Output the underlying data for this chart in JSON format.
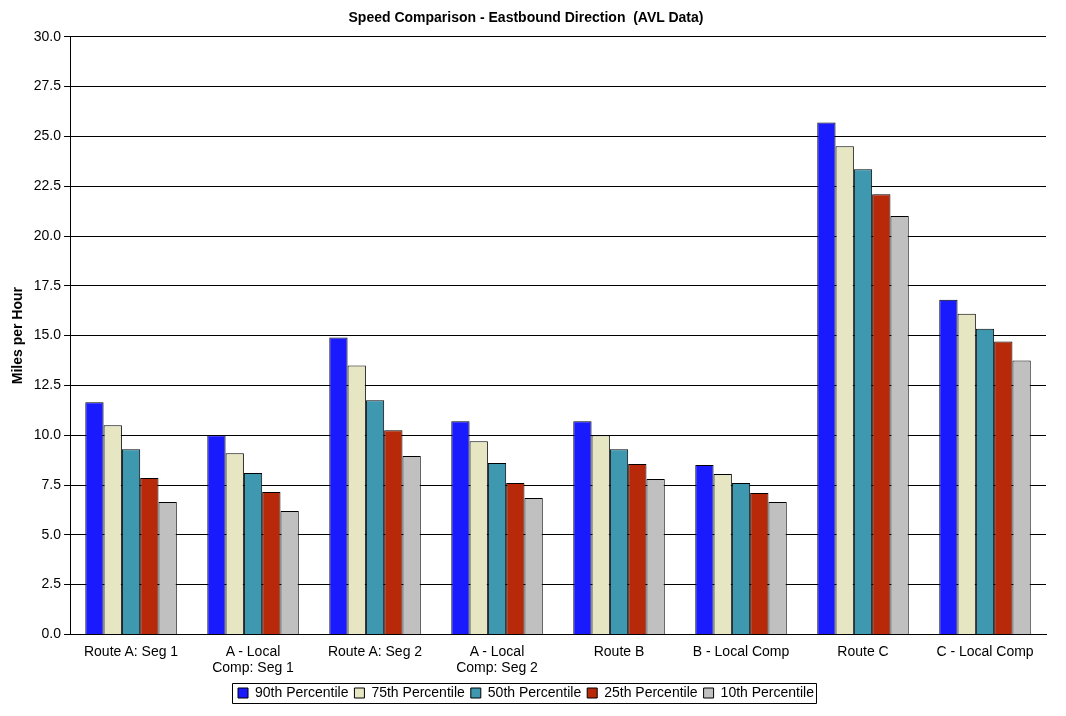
{
  "chart_data": {
    "type": "bar",
    "title": "Speed Comparison - Eastbound Direction  (AVL Data)",
    "ylabel": "Miles per Hour",
    "categories": [
      "Route A: Seg 1",
      "A - Local Comp: Seg 1",
      "Route A: Seg 2",
      "A - Local Comp: Seg 2",
      "Route B",
      "B - Local Comp",
      "Route C",
      "C - Local Comp"
    ],
    "series": [
      {
        "name": "90th Percentile",
        "color": "#1a1aff",
        "values": [
          11.65,
          10.0,
          14.9,
          10.7,
          10.7,
          8.5,
          25.7,
          16.8
        ]
      },
      {
        "name": "75th Percentile",
        "color": "#e6e6c3",
        "values": [
          10.5,
          9.1,
          13.5,
          9.7,
          10.0,
          8.05,
          24.5,
          16.1
        ]
      },
      {
        "name": "50th Percentile",
        "color": "#3d98b0",
        "values": [
          9.3,
          8.1,
          11.75,
          8.6,
          9.3,
          7.6,
          23.35,
          15.35
        ]
      },
      {
        "name": "25th Percentile",
        "color": "#b8290a",
        "values": [
          7.85,
          7.15,
          10.25,
          7.6,
          8.55,
          7.1,
          22.1,
          14.7
        ]
      },
      {
        "name": "10th Percentile",
        "color": "#c0c0c0",
        "values": [
          6.65,
          6.2,
          8.95,
          6.85,
          7.8,
          6.65,
          21.0,
          13.75
        ]
      }
    ],
    "ylim": [
      0,
      30
    ],
    "yticks": [
      {
        "value": 0,
        "label": "0.0"
      },
      {
        "value": 2.5,
        "label": "2.5"
      },
      {
        "value": 5,
        "label": "5.0"
      },
      {
        "value": 7.5,
        "label": "7.5"
      },
      {
        "value": 10,
        "label": "10.0"
      },
      {
        "value": 12.5,
        "label": "12.5"
      },
      {
        "value": 15,
        "label": "15.0"
      },
      {
        "value": 17.5,
        "label": "17.5"
      },
      {
        "value": 20,
        "label": "20.0"
      },
      {
        "value": 22.5,
        "label": "22.5"
      },
      {
        "value": 25,
        "label": "25.0"
      },
      {
        "value": 27.5,
        "label": "27.5"
      },
      {
        "value": 30,
        "label": "30.0"
      }
    ],
    "grid": "y",
    "legend": "bottom"
  }
}
